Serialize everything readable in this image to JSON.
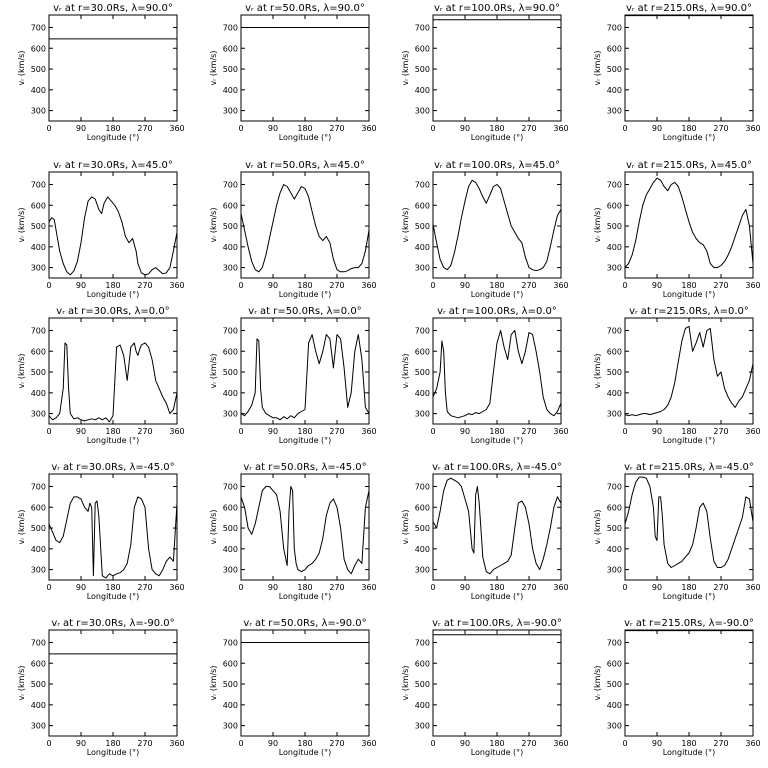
{
  "chart_data": {
    "type": "line",
    "layout": "grid 5 rows x 4 columns",
    "grid": false,
    "legend": "none",
    "xlabel": "Longitude (°)",
    "ylabel": "vᵣ (km/s)",
    "xlim": [
      0,
      360
    ],
    "ylim": [
      250,
      760
    ],
    "xticks": [
      0,
      90,
      180,
      270,
      360
    ],
    "yticks": [
      300,
      400,
      500,
      600,
      700
    ],
    "panels": [
      {
        "title": "vᵣ at r=30.0Rs, λ=90.0°",
        "x": [
          0,
          360
        ],
        "y": [
          645,
          645
        ]
      },
      {
        "title": "vᵣ at r=50.0Rs, λ=90.0°",
        "x": [
          0,
          360
        ],
        "y": [
          700,
          700
        ]
      },
      {
        "title": "vᵣ at r=100.0Rs, λ=90.0°",
        "x": [
          0,
          360
        ],
        "y": [
          737,
          737
        ]
      },
      {
        "title": "vᵣ at r=215.0Rs, λ=90.0°",
        "x": [
          0,
          360
        ],
        "y": [
          757,
          757
        ]
      },
      {
        "title": "vᵣ at r=30.0Rs, λ=45.0°",
        "x": [
          0,
          8,
          15,
          22,
          30,
          40,
          50,
          60,
          70,
          80,
          90,
          100,
          110,
          120,
          130,
          140,
          148,
          155,
          165,
          175,
          185,
          195,
          205,
          215,
          225,
          235,
          240,
          245,
          250,
          260,
          270,
          280,
          290,
          300,
          310,
          320,
          330,
          340,
          350,
          360
        ],
        "y": [
          520,
          540,
          530,
          460,
          380,
          320,
          280,
          265,
          285,
          330,
          420,
          540,
          620,
          640,
          630,
          580,
          560,
          610,
          640,
          620,
          600,
          570,
          520,
          450,
          420,
          440,
          410,
          380,
          320,
          275,
          265,
          270,
          290,
          300,
          285,
          270,
          275,
          300,
          380,
          470
        ]
      },
      {
        "title": "vᵣ at r=50.0Rs, λ=45.0°",
        "x": [
          0,
          10,
          20,
          30,
          40,
          50,
          60,
          70,
          80,
          90,
          100,
          110,
          120,
          130,
          140,
          150,
          160,
          170,
          180,
          190,
          200,
          210,
          220,
          230,
          240,
          250,
          260,
          270,
          280,
          290,
          300,
          310,
          320,
          330,
          340,
          350,
          360
        ],
        "y": [
          560,
          480,
          400,
          330,
          290,
          280,
          300,
          360,
          440,
          520,
          600,
          660,
          700,
          690,
          660,
          630,
          660,
          690,
          680,
          640,
          570,
          500,
          450,
          430,
          450,
          420,
          340,
          290,
          280,
          280,
          285,
          295,
          300,
          300,
          320,
          380,
          480
        ]
      },
      {
        "title": "vᵣ at r=100.0Rs, λ=45.0°",
        "x": [
          0,
          10,
          20,
          30,
          40,
          50,
          60,
          70,
          80,
          90,
          100,
          110,
          120,
          130,
          140,
          150,
          160,
          170,
          180,
          190,
          200,
          210,
          220,
          230,
          240,
          250,
          260,
          270,
          280,
          290,
          300,
          310,
          320,
          330,
          340,
          350,
          360
        ],
        "y": [
          510,
          420,
          340,
          300,
          290,
          310,
          370,
          450,
          540,
          620,
          690,
          720,
          710,
          680,
          640,
          610,
          650,
          690,
          700,
          680,
          620,
          560,
          500,
          470,
          440,
          420,
          350,
          300,
          290,
          285,
          290,
          300,
          330,
          400,
          480,
          550,
          580
        ]
      },
      {
        "title": "vᵣ at r=215.0Rs, λ=45.0°",
        "x": [
          0,
          10,
          20,
          30,
          40,
          50,
          60,
          70,
          80,
          90,
          100,
          110,
          120,
          130,
          140,
          150,
          160,
          170,
          180,
          190,
          200,
          210,
          220,
          230,
          240,
          250,
          260,
          270,
          280,
          290,
          300,
          310,
          320,
          330,
          340,
          350,
          360
        ],
        "y": [
          300,
          320,
          360,
          430,
          520,
          600,
          650,
          680,
          710,
          730,
          720,
          690,
          670,
          700,
          710,
          690,
          640,
          580,
          520,
          470,
          440,
          420,
          410,
          380,
          320,
          300,
          300,
          310,
          330,
          360,
          400,
          450,
          500,
          550,
          580,
          500,
          320
        ]
      },
      {
        "title": "vᵣ at r=30.0Rs, λ=0.0°",
        "x": [
          0,
          10,
          20,
          30,
          40,
          45,
          50,
          55,
          60,
          70,
          80,
          90,
          100,
          110,
          120,
          130,
          140,
          150,
          160,
          170,
          180,
          190,
          200,
          210,
          220,
          230,
          240,
          245,
          250,
          255,
          260,
          270,
          280,
          290,
          300,
          310,
          320,
          330,
          340,
          350,
          360
        ],
        "y": [
          290,
          270,
          280,
          300,
          420,
          640,
          630,
          420,
          300,
          275,
          280,
          270,
          265,
          270,
          275,
          270,
          280,
          270,
          280,
          260,
          290,
          620,
          630,
          580,
          460,
          620,
          640,
          600,
          580,
          610,
          630,
          640,
          620,
          560,
          460,
          420,
          380,
          350,
          300,
          320,
          400
        ]
      },
      {
        "title": "vᵣ at r=50.0Rs, λ=0.0°",
        "x": [
          0,
          10,
          20,
          30,
          40,
          45,
          50,
          55,
          60,
          70,
          80,
          90,
          100,
          110,
          120,
          130,
          140,
          150,
          160,
          170,
          180,
          190,
          200,
          210,
          220,
          230,
          240,
          250,
          260,
          270,
          280,
          290,
          300,
          310,
          320,
          330,
          340,
          350,
          360
        ],
        "y": [
          300,
          290,
          310,
          340,
          400,
          660,
          650,
          420,
          330,
          300,
          290,
          280,
          280,
          270,
          285,
          275,
          290,
          280,
          300,
          310,
          320,
          640,
          680,
          600,
          540,
          600,
          680,
          660,
          520,
          680,
          660,
          520,
          330,
          400,
          600,
          680,
          560,
          330,
          300
        ]
      },
      {
        "title": "vᵣ at r=100.0Rs, λ=0.0°",
        "x": [
          0,
          10,
          20,
          25,
          30,
          35,
          40,
          50,
          60,
          70,
          80,
          90,
          100,
          110,
          120,
          130,
          140,
          150,
          160,
          170,
          180,
          190,
          200,
          210,
          220,
          230,
          240,
          250,
          260,
          270,
          280,
          290,
          300,
          310,
          320,
          330,
          340,
          350,
          360
        ],
        "y": [
          380,
          420,
          500,
          650,
          600,
          400,
          310,
          290,
          285,
          280,
          285,
          290,
          300,
          295,
          305,
          300,
          310,
          320,
          350,
          500,
          640,
          700,
          620,
          560,
          680,
          700,
          600,
          540,
          600,
          690,
          680,
          600,
          500,
          380,
          320,
          300,
          290,
          310,
          350
        ]
      },
      {
        "title": "vᵣ at r=215.0Rs, λ=0.0°",
        "x": [
          0,
          10,
          20,
          30,
          40,
          50,
          60,
          70,
          80,
          90,
          100,
          110,
          120,
          130,
          140,
          150,
          160,
          170,
          180,
          190,
          200,
          210,
          220,
          230,
          240,
          250,
          260,
          270,
          280,
          290,
          300,
          310,
          320,
          330,
          340,
          350,
          360
        ],
        "y": [
          295,
          290,
          295,
          290,
          295,
          300,
          300,
          295,
          300,
          305,
          310,
          320,
          340,
          380,
          450,
          550,
          650,
          710,
          720,
          600,
          640,
          690,
          620,
          700,
          710,
          560,
          480,
          500,
          420,
          380,
          350,
          330,
          360,
          380,
          420,
          460,
          540
        ]
      },
      {
        "title": "vᵣ at r=30.0Rs, λ=-45.0°",
        "x": [
          0,
          10,
          20,
          30,
          40,
          50,
          60,
          70,
          80,
          90,
          100,
          110,
          115,
          120,
          125,
          130,
          135,
          140,
          150,
          160,
          170,
          180,
          190,
          200,
          210,
          220,
          230,
          240,
          250,
          260,
          270,
          280,
          290,
          300,
          310,
          320,
          330,
          340,
          350,
          360
        ],
        "y": [
          520,
          480,
          440,
          430,
          460,
          540,
          620,
          650,
          650,
          640,
          600,
          580,
          620,
          600,
          270,
          620,
          630,
          560,
          270,
          260,
          280,
          270,
          280,
          285,
          300,
          330,
          420,
          600,
          650,
          640,
          600,
          400,
          300,
          280,
          270,
          300,
          340,
          360,
          340,
          620
        ]
      },
      {
        "title": "vᵣ at r=50.0Rs, λ=-45.0°",
        "x": [
          0,
          10,
          20,
          30,
          40,
          50,
          60,
          70,
          80,
          90,
          100,
          110,
          120,
          130,
          135,
          140,
          145,
          150,
          155,
          160,
          170,
          180,
          190,
          200,
          210,
          220,
          230,
          240,
          250,
          260,
          270,
          280,
          290,
          300,
          310,
          320,
          330,
          340,
          350,
          360
        ],
        "y": [
          650,
          600,
          500,
          470,
          520,
          600,
          680,
          700,
          700,
          680,
          660,
          580,
          400,
          320,
          580,
          700,
          680,
          400,
          330,
          300,
          290,
          300,
          320,
          330,
          350,
          380,
          450,
          560,
          620,
          640,
          600,
          500,
          350,
          300,
          280,
          320,
          350,
          330,
          600,
          680
        ]
      },
      {
        "title": "vᵣ at r=100.0Rs, λ=-45.0°",
        "x": [
          0,
          10,
          20,
          30,
          40,
          50,
          60,
          70,
          80,
          90,
          100,
          110,
          115,
          120,
          125,
          130,
          140,
          150,
          160,
          170,
          180,
          190,
          200,
          210,
          220,
          230,
          240,
          250,
          260,
          270,
          280,
          290,
          300,
          310,
          320,
          330,
          340,
          350,
          360
        ],
        "y": [
          530,
          500,
          580,
          680,
          730,
          740,
          730,
          720,
          700,
          640,
          580,
          400,
          380,
          660,
          700,
          620,
          360,
          290,
          280,
          300,
          310,
          320,
          330,
          340,
          370,
          500,
          620,
          630,
          600,
          520,
          400,
          330,
          300,
          350,
          420,
          500,
          600,
          650,
          620
        ]
      },
      {
        "title": "vᵣ at r=215.0Rs, λ=-45.0°",
        "x": [
          0,
          10,
          20,
          30,
          40,
          50,
          60,
          70,
          80,
          85,
          90,
          95,
          100,
          105,
          110,
          120,
          130,
          140,
          150,
          160,
          170,
          180,
          190,
          200,
          210,
          220,
          230,
          240,
          250,
          260,
          270,
          280,
          290,
          300,
          310,
          320,
          330,
          340,
          350,
          360
        ],
        "y": [
          520,
          580,
          660,
          720,
          745,
          745,
          740,
          700,
          600,
          460,
          440,
          650,
          650,
          560,
          420,
          330,
          310,
          320,
          330,
          340,
          360,
          380,
          420,
          500,
          600,
          620,
          580,
          450,
          340,
          310,
          310,
          320,
          350,
          400,
          450,
          500,
          550,
          650,
          640,
          530
        ]
      },
      {
        "title": "vᵣ at r=30.0Rs, λ=-90.0°",
        "x": [
          0,
          360
        ],
        "y": [
          645,
          645
        ]
      },
      {
        "title": "vᵣ at r=50.0Rs, λ=-90.0°",
        "x": [
          0,
          360
        ],
        "y": [
          700,
          700
        ]
      },
      {
        "title": "vᵣ at r=100.0Rs, λ=-90.0°",
        "x": [
          0,
          360
        ],
        "y": [
          737,
          737
        ]
      },
      {
        "title": "vᵣ at r=215.0Rs, λ=-90.0°",
        "x": [
          0,
          360
        ],
        "y": [
          757,
          757
        ]
      }
    ]
  }
}
